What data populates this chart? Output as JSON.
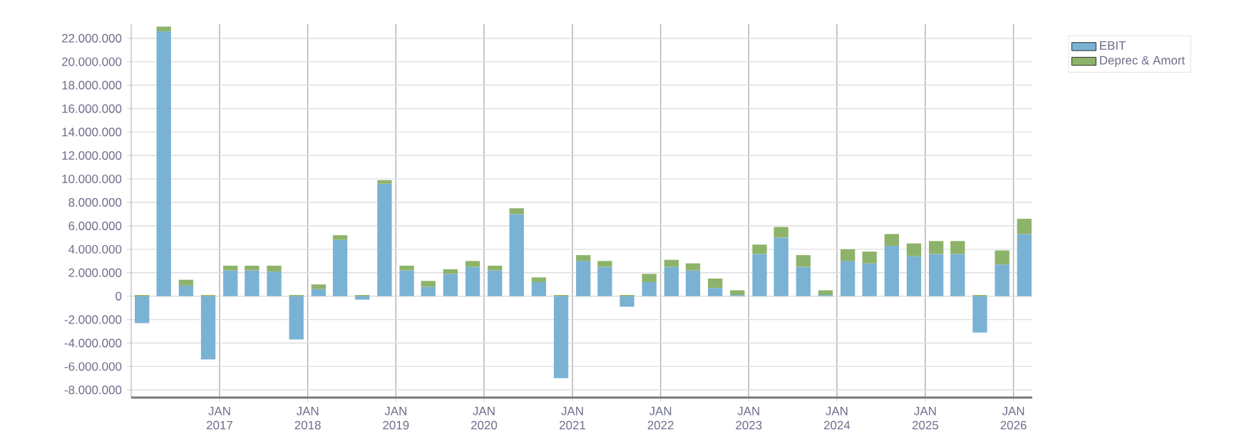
{
  "chart_data": {
    "type": "bar",
    "stacked": true,
    "x": [
      "2016-02-15",
      "2016-05-15",
      "2016-08-15",
      "2016-11-15",
      "2017-02-15",
      "2017-05-15",
      "2017-08-15",
      "2017-11-15",
      "2018-02-15",
      "2018-05-15",
      "2018-08-15",
      "2018-11-15",
      "2019-02-15",
      "2019-05-15",
      "2019-08-15",
      "2019-11-15",
      "2020-02-15",
      "2020-05-15",
      "2020-08-15",
      "2020-11-15",
      "2021-02-15",
      "2021-05-15",
      "2021-08-15",
      "2021-11-15",
      "2022-02-15",
      "2022-05-15",
      "2022-08-15",
      "2022-11-15",
      "2023-02-15",
      "2023-05-15",
      "2023-08-15",
      "2023-11-15",
      "2024-02-15",
      "2024-05-15",
      "2024-08-15",
      "2024-11-15",
      "2025-02-15",
      "2025-05-15",
      "2025-08-15",
      "2025-11-15",
      "2026-02-15"
    ],
    "series": [
      {
        "name": "EBIT",
        "color": "#7ab2d4",
        "values": [
          -2300000,
          22600000,
          900000,
          -5400000,
          2200000,
          2200000,
          2100000,
          -3700000,
          600000,
          4800000,
          -300000,
          9600000,
          2200000,
          800000,
          1900000,
          2500000,
          2200000,
          7000000,
          1200000,
          -7000000,
          3000000,
          2500000,
          -900000,
          1200000,
          2500000,
          2200000,
          700000,
          100000,
          3600000,
          5000000,
          2500000,
          100000,
          3000000,
          2800000,
          4300000,
          3400000,
          3600000,
          3600000,
          -3100000,
          2700000,
          5300000
        ]
      },
      {
        "name": "Deprec & Amort",
        "color": "#8db36a",
        "values": [
          100000,
          400000,
          500000,
          100000,
          400000,
          400000,
          500000,
          100000,
          400000,
          400000,
          100000,
          300000,
          400000,
          500000,
          400000,
          500000,
          400000,
          500000,
          400000,
          100000,
          500000,
          500000,
          100000,
          700000,
          600000,
          600000,
          800000,
          400000,
          800000,
          900000,
          1000000,
          400000,
          1000000,
          1000000,
          1000000,
          1100000,
          1100000,
          1100000,
          100000,
          1200000,
          1300000
        ]
      }
    ],
    "xlim": [
      "2016-01-01",
      "2026-03-20"
    ],
    "xticks": [
      {
        "value": "2017-01-01",
        "label": "JAN 2017"
      },
      {
        "value": "2018-01-01",
        "label": "JAN 2018"
      },
      {
        "value": "2019-01-01",
        "label": "JAN 2019"
      },
      {
        "value": "2020-01-01",
        "label": "JAN 2020"
      },
      {
        "value": "2021-01-01",
        "label": "JAN 2021"
      },
      {
        "value": "2022-01-01",
        "label": "JAN 2022"
      },
      {
        "value": "2023-01-01",
        "label": "JAN 2023"
      },
      {
        "value": "2024-01-01",
        "label": "JAN 2024"
      },
      {
        "value": "2025-01-01",
        "label": "JAN 2025"
      },
      {
        "value": "2026-01-01",
        "label": "JAN 2026"
      }
    ],
    "ylim": [
      -8650000,
      23200000
    ],
    "yticks": [
      {
        "value": -8000000,
        "label": "-8.000.000"
      },
      {
        "value": -6000000,
        "label": "-6.000.000"
      },
      {
        "value": -4000000,
        "label": "-4.000.000"
      },
      {
        "value": -2000000,
        "label": "-2.000.000"
      },
      0,
      {
        "value": 2000000,
        "label": "2.000.000"
      },
      {
        "value": 4000000,
        "label": "4.000.000"
      },
      {
        "value": 6000000,
        "label": "6.000.000"
      },
      {
        "value": 8000000,
        "label": "8.000.000"
      },
      {
        "value": 10000000,
        "label": "10.000.000"
      },
      {
        "value": 12000000,
        "label": "12.000.000"
      },
      {
        "value": 14000000,
        "label": "14.000.000"
      },
      {
        "value": 16000000,
        "label": "16.000.000"
      },
      {
        "value": 18000000,
        "label": "18.000.000"
      },
      {
        "value": 20000000,
        "label": "20.000.000"
      },
      {
        "value": 22000000,
        "label": "22.000.000"
      }
    ],
    "grid": true,
    "legend": "top right"
  }
}
